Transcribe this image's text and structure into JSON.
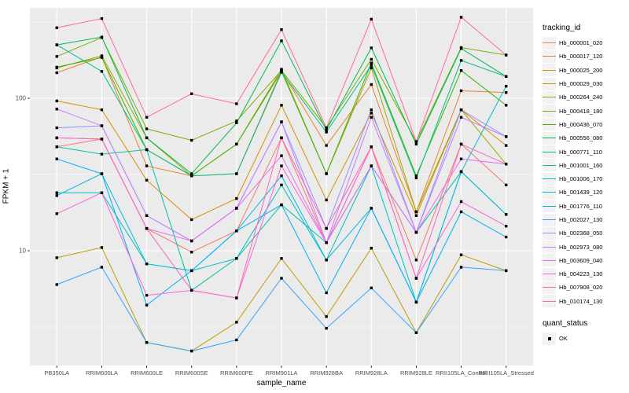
{
  "chart_data": {
    "type": "line",
    "title": "",
    "xlabel": "sample_name",
    "ylabel": "FPKM + 1",
    "y_scale": "log10",
    "y_major_ticks": [
      10,
      100
    ],
    "y_minor_ticks": [
      3.162,
      31.62,
      316.2
    ],
    "ylim": [
      1.8,
      392
    ],
    "grid": true,
    "panel_bg": "#EBEBEB",
    "grid_color": "#FFFFFF",
    "tick_label_color": "#4D4D4D",
    "point_color": "#000000",
    "point_shape": "square",
    "legend_position": "right",
    "legend_title": "tracking_id",
    "legend2": {
      "title": "quant_status",
      "items": [
        {
          "label": "OK",
          "marker": "black-square"
        }
      ]
    },
    "categories": [
      "PB350LA",
      "RRIM600LA",
      "RRIM600LE",
      "RRIM600SE",
      "RRIM600PE",
      "RRIM901LA",
      "RRIM928BA",
      "RRIM928LA",
      "RRIM928LE",
      "RRII105LA_Control",
      "RRII105LA_Stressed"
    ],
    "series": [
      {
        "name": "Hb_000001_020",
        "color": "#F8766D",
        "values": [
          48,
          54,
          14,
          9.8,
          13.5,
          55,
          11.3,
          48,
          8.7,
          50,
          27
        ]
      },
      {
        "name": "Hb_000017_120",
        "color": "#EA8331",
        "values": [
          147,
          187,
          36,
          31,
          32,
          152,
          49,
          123,
          18,
          112,
          109
        ]
      },
      {
        "name": "Hb_000025_200",
        "color": "#D89000",
        "values": [
          96,
          84,
          29,
          16,
          22,
          90,
          21.5,
          80,
          17,
          84,
          49
        ]
      },
      {
        "name": "Hb_000029_030",
        "color": "#C09B00",
        "values": [
          9,
          10.5,
          2.5,
          2.2,
          3.4,
          8.9,
          3.7,
          10.4,
          2.9,
          9.4,
          7.4
        ]
      },
      {
        "name": "Hb_000264_240",
        "color": "#A3A500",
        "values": [
          158,
          190,
          55,
          31,
          50,
          155,
          32,
          158,
          18,
          84,
          37
        ]
      },
      {
        "name": "Hb_000418_180",
        "color": "#7CAE00",
        "values": [
          188,
          250,
          63,
          53,
          71,
          152,
          64,
          180,
          52,
          215,
          192
        ]
      },
      {
        "name": "Hb_000436_070",
        "color": "#39B600",
        "values": [
          160,
          185,
          46,
          31,
          50,
          150,
          32,
          170,
          31,
          152,
          90
        ]
      },
      {
        "name": "Hb_000556_080",
        "color": "#00BB4E",
        "values": [
          224,
          252,
          55,
          32,
          69,
          238,
          62,
          214,
          50,
          212,
          139
        ]
      },
      {
        "name": "Hb_000771_110",
        "color": "#00C087",
        "values": [
          224,
          150,
          46,
          31,
          32,
          148,
          60,
          165,
          30,
          177,
          139
        ]
      },
      {
        "name": "Hb_001001_160",
        "color": "#00C1A3",
        "values": [
          48,
          43,
          46,
          5.5,
          8.9,
          20,
          11.3,
          36,
          13.2,
          33,
          17.3
        ]
      },
      {
        "name": "Hb_001006_170",
        "color": "#00BFC4",
        "values": [
          24,
          24,
          8.2,
          7.4,
          8.9,
          27,
          8.7,
          36,
          4.6,
          33,
          120
        ]
      },
      {
        "name": "Hb_001439_120",
        "color": "#00BAE0",
        "values": [
          23,
          32,
          8.2,
          7.4,
          13.5,
          31,
          8.7,
          19,
          4.6,
          33,
          17.3
        ]
      },
      {
        "name": "Hb_001776_110",
        "color": "#00B0F6",
        "values": [
          40,
          32,
          4.4,
          7.4,
          13.5,
          20,
          5.3,
          19,
          4.6,
          18,
          12.3
        ]
      },
      {
        "name": "Hb_002027_130",
        "color": "#35A2FF",
        "values": [
          6,
          7.8,
          2.5,
          2.2,
          2.6,
          6.6,
          3.1,
          5.7,
          2.9,
          7.8,
          7.4
        ]
      },
      {
        "name": "Hb_002368_050",
        "color": "#9590FF",
        "values": [
          64,
          66,
          17,
          11.6,
          19,
          70,
          14,
          84,
          13.2,
          84,
          56
        ]
      },
      {
        "name": "Hb_002973_080",
        "color": "#C77CFF",
        "values": [
          85,
          66,
          17,
          11.6,
          19,
          70,
          11.3,
          75,
          13.2,
          75,
          56
        ]
      },
      {
        "name": "Hb_003609_040",
        "color": "#E76BF3",
        "values": [
          55,
          54,
          14,
          11.6,
          19,
          42,
          11.3,
          36,
          13.2,
          40,
          37
        ]
      },
      {
        "name": "Hb_004223_130",
        "color": "#FA62DB",
        "values": [
          17.5,
          24,
          5.1,
          5.5,
          4.9,
          36,
          11.3,
          48,
          6.6,
          21,
          14.5
        ]
      },
      {
        "name": "Hb_007908_020",
        "color": "#FF62BC",
        "values": [
          55,
          54,
          14,
          5.5,
          4.9,
          55,
          14,
          48,
          6.6,
          50,
          37
        ]
      },
      {
        "name": "Hb_010174_130",
        "color": "#FF6A98",
        "values": [
          290,
          333,
          75,
          107,
          92,
          282,
          64,
          330,
          52,
          340,
          192
        ]
      }
    ]
  }
}
